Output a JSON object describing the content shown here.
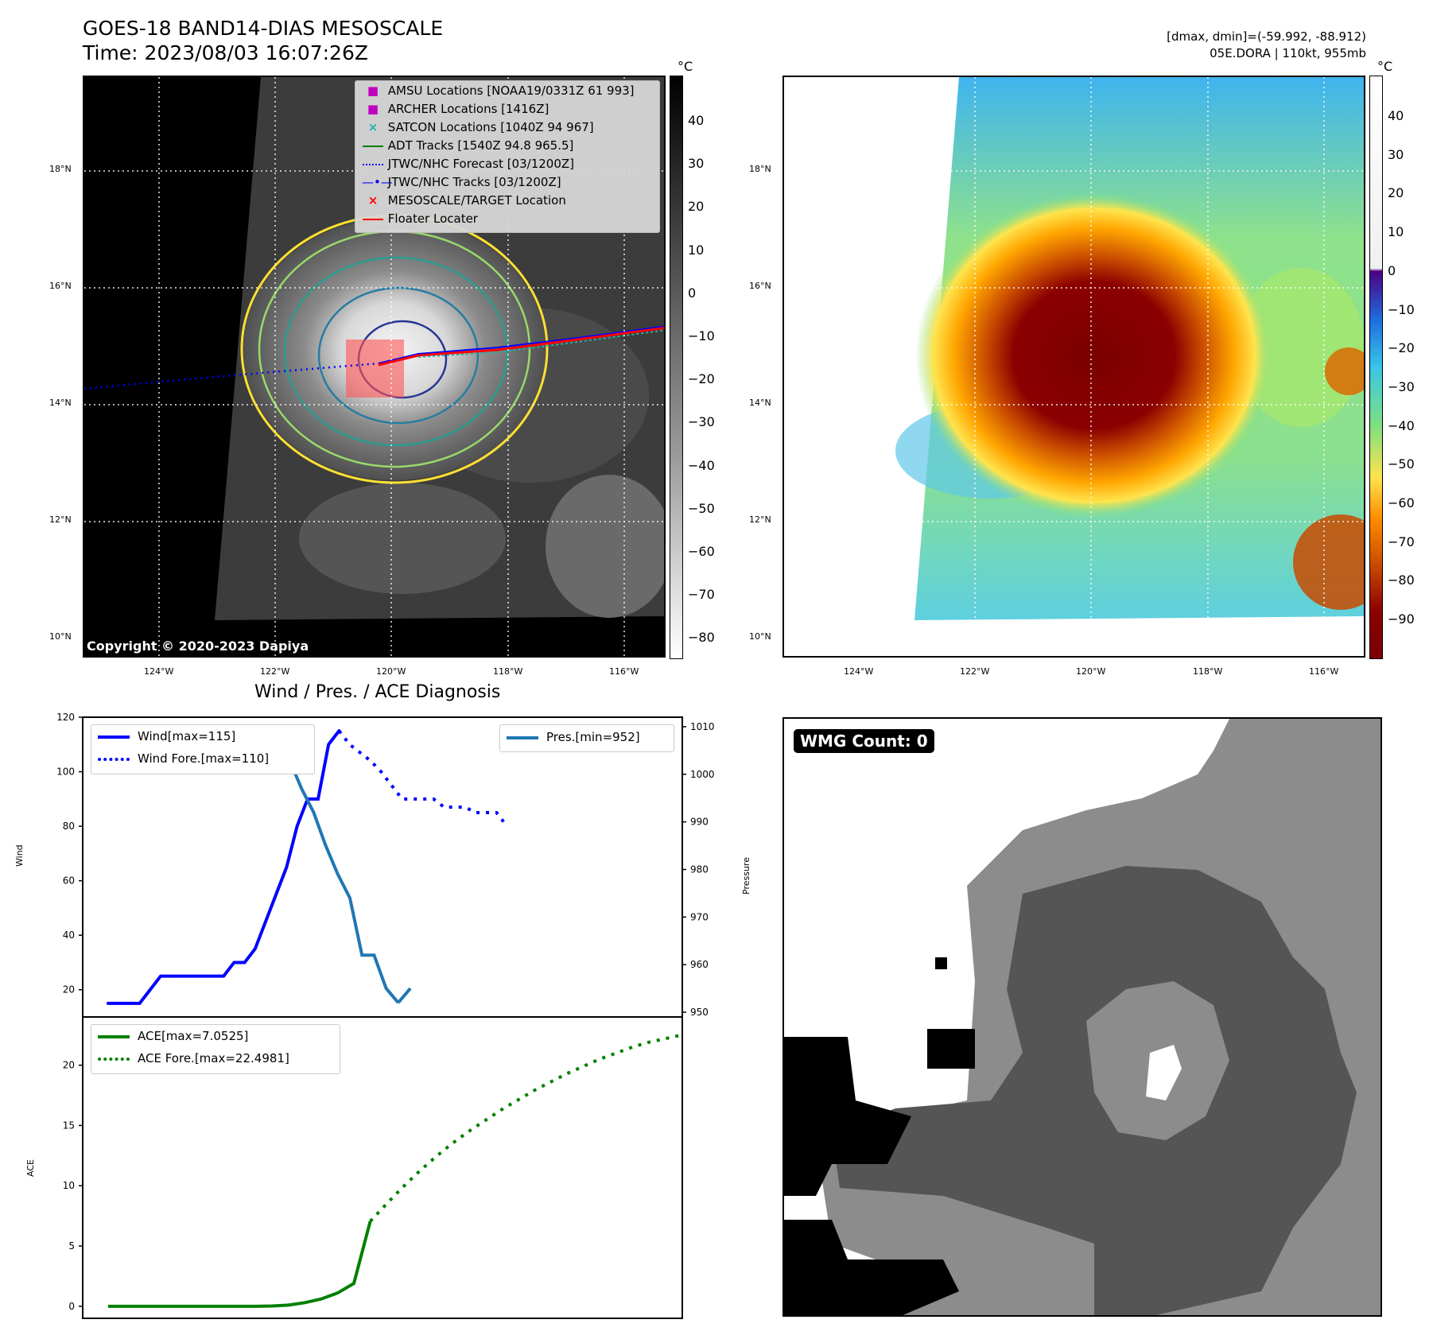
{
  "header": {
    "title_line1": "GOES-18 BAND14-DIAS MESOSCALE",
    "title_line2": "Time: 2023/08/03 16:07:26Z",
    "right_line1": "[dmax, dmin]=(-59.992, -88.912)",
    "right_line2": "05E.DORA | 110kt, 955mb"
  },
  "maps": {
    "lat_labels": [
      "18°N",
      "16°N",
      "14°N",
      "12°N",
      "10°N"
    ],
    "lon_labels": [
      "124°W",
      "122°W",
      "120°W",
      "118°W",
      "116°W"
    ],
    "copyright": "Copyright © 2020-2023 Dapiya",
    "colorbar_unit": "°C",
    "left_colorbar_ticks": [
      "40",
      "30",
      "20",
      "10",
      "0",
      "−10",
      "−20",
      "−30",
      "−40",
      "−50",
      "−60",
      "−70",
      "−80"
    ],
    "right_colorbar_ticks": [
      "40",
      "30",
      "20",
      "10",
      "0",
      "−10",
      "−20",
      "−30",
      "−40",
      "−50",
      "−60",
      "−70",
      "−80",
      "−90"
    ]
  },
  "legend": {
    "items": [
      {
        "label": "AMSU Locations [NOAA19/0331Z 61 993]",
        "color": "#c000c0",
        "marker": "square"
      },
      {
        "label": "ARCHER Locations [1416Z]",
        "color": "#c000c0",
        "marker": "square"
      },
      {
        "label": "SATCON Locations [1040Z 94 967]",
        "color": "#20b2aa",
        "marker": "x"
      },
      {
        "label": "ADT Tracks [1540Z 94.8 965.5]",
        "color": "#008000",
        "marker": "line"
      },
      {
        "label": "JTWC/NHC Forecast [03/1200Z]",
        "color": "#0000ff",
        "marker": "dotted"
      },
      {
        "label": "JTWC/NHC Tracks [03/1200Z]",
        "color": "#0000ff",
        "marker": "line-dot"
      },
      {
        "label": "MESOSCALE/TARGET Location",
        "color": "#ff0000",
        "marker": "x"
      },
      {
        "label": "Floater Locater",
        "color": "#ff0000",
        "marker": "line"
      }
    ]
  },
  "diagnosis": {
    "title": "Wind / Pres. / ACE Diagnosis",
    "wind_axis_label": "Wind",
    "pressure_axis_label": "Pressure",
    "ace_axis_label": "ACE",
    "wind_legend": [
      "Wind[max=115]",
      "Wind Fore.[max=110]"
    ],
    "pres_legend": "Pres.[min=952]",
    "ace_legend": [
      "ACE[max=7.0525]",
      "ACE Fore.[max=22.4981]"
    ]
  },
  "wmg": {
    "label": "WMG Count: 0"
  },
  "colors": {
    "wind": "#0000ff",
    "pressure": "#1f77b4",
    "ace": "#008000"
  },
  "chart_data": [
    {
      "type": "line",
      "title": "Wind / Pres. / ACE Diagnosis",
      "ylabel": "Wind",
      "ylim": [
        10,
        120
      ],
      "series": [
        {
          "name": "Wind[max=115]",
          "x": [
            0,
            1,
            2,
            3,
            4,
            5,
            6,
            7,
            8,
            9,
            10,
            11,
            12,
            13,
            14,
            15,
            16,
            17,
            18,
            19,
            20,
            21,
            22
          ],
          "values": [
            15,
            15,
            15,
            15,
            20,
            25,
            25,
            25,
            25,
            25,
            25,
            25,
            30,
            30,
            35,
            45,
            55,
            65,
            80,
            90,
            90,
            110,
            115
          ]
        },
        {
          "name": "Wind Fore.[max=110]",
          "x": [
            22,
            23,
            24,
            25,
            26,
            27,
            28,
            29,
            30,
            31,
            32,
            33,
            34,
            35,
            36,
            37,
            38
          ],
          "values": [
            115,
            110,
            107,
            104,
            100,
            95,
            90,
            90,
            90,
            90,
            87,
            87,
            87,
            85,
            85,
            85,
            80
          ]
        }
      ]
    },
    {
      "type": "line",
      "ylabel": "Pressure",
      "ylim": [
        949,
        1012
      ],
      "series": [
        {
          "name": "Pres.[min=952]",
          "x": [
            0,
            1,
            2,
            3,
            4,
            5,
            6,
            7,
            8,
            9,
            10,
            11,
            12,
            13,
            14,
            15,
            16,
            17,
            18,
            19,
            20,
            21,
            22,
            23,
            24
          ],
          "values": [
            1010,
            1010,
            1010,
            1010,
            1010,
            1009,
            1009,
            1009,
            1008,
            1008,
            1008,
            1008,
            1008,
            1008,
            1007,
            1003,
            997,
            992,
            985,
            979,
            974,
            962,
            962,
            955,
            952
          ]
        },
        {
          "name": "",
          "x": [
            24,
            25
          ],
          "values": [
            952,
            955
          ]
        }
      ]
    },
    {
      "type": "line",
      "ylabel": "ACE",
      "ylim": [
        -1,
        24
      ],
      "series": [
        {
          "name": "ACE[max=7.0525]",
          "x": [
            0,
            2,
            4,
            6,
            8,
            10,
            12,
            14,
            16,
            18,
            20,
            22,
            24,
            26,
            28,
            30,
            32
          ],
          "values": [
            0,
            0,
            0,
            0,
            0,
            0,
            0,
            0,
            0,
            0,
            0.02,
            0.1,
            0.3,
            0.6,
            1.1,
            1.9,
            7.05
          ]
        },
        {
          "name": "ACE Fore.[max=22.4981]",
          "x": [
            32,
            34,
            36,
            38,
            40,
            42,
            44,
            46,
            48,
            50,
            52,
            54,
            56,
            58,
            60,
            62,
            64,
            66,
            68,
            70
          ],
          "values": [
            7.05,
            8.5,
            9.9,
            11.2,
            12.4,
            13.5,
            14.5,
            15.4,
            16.3,
            17.1,
            17.9,
            18.6,
            19.3,
            19.9,
            20.5,
            21.0,
            21.5,
            21.9,
            22.2,
            22.5
          ]
        }
      ],
      "yticks": [
        0,
        5,
        10,
        15,
        20
      ]
    }
  ]
}
